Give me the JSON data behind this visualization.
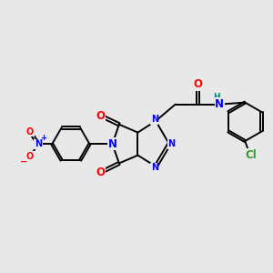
{
  "background_color": "#e8e8e8",
  "figsize": [
    3.0,
    3.0
  ],
  "dpi": 100,
  "atom_colors": {
    "C": "#000000",
    "N": "#0000ff",
    "O": "#ff0000",
    "Cl": "#2a9d2a",
    "H": "#008080"
  },
  "bond_color": "#000000",
  "bond_width": 1.4,
  "font_size_atoms": 8.5,
  "font_size_small": 7.0,
  "xlim": [
    0,
    10
  ],
  "ylim": [
    0,
    10
  ]
}
